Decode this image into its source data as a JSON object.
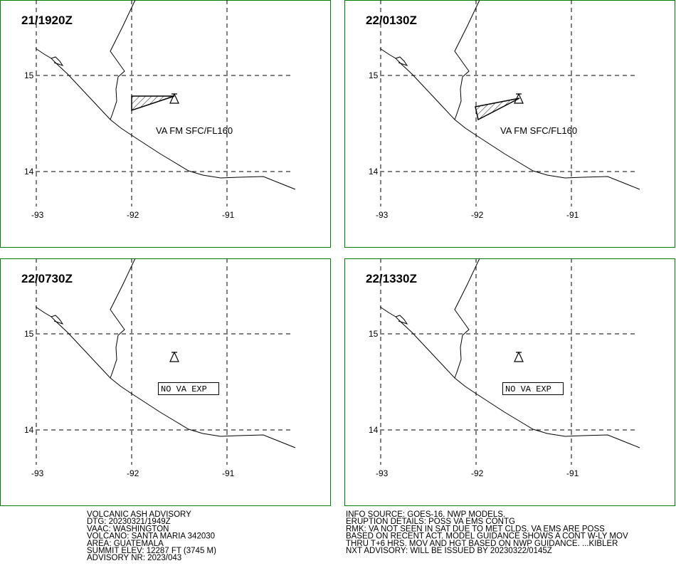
{
  "panels": [
    {
      "time": "21/1920Z",
      "annotation": "VA FM SFC/FL160"
    },
    {
      "time": "22/0130Z",
      "annotation": "VA FM SFC/FL160"
    },
    {
      "time": "22/0730Z",
      "annotation": "NO VA EXP"
    },
    {
      "time": "22/1330Z",
      "annotation": "NO VA EXP"
    }
  ],
  "grid": {
    "lat_labels": [
      "15",
      "14"
    ],
    "lon_labels": [
      "-93",
      "-92",
      "-91"
    ]
  },
  "advisory": {
    "left": [
      "VOLCANIC ASH ADVISORY",
      "DTG: 20230321/1949Z",
      "VAAC: WASHINGTON",
      "VOLCANO: SANTA MARIA 342030",
      "AREA: GUATEMALA",
      "SUMMIT ELEV: 12287 FT (3745 M)",
      "ADVISORY NR: 2023/043"
    ],
    "right": [
      "INFO SOURCE: GOES-16. NWP MODELS.",
      "ERUPTION DETAILS: POSS VA EMS CONTG",
      "RMK: VA NOT SEEN IN SAT DUE TO MET CLDS. VA EMS ARE POSS",
      "BASED ON RECENT ACT. MODEL GUIDANCE SHOWS A CONT W-LY MOV",
      "THRU T+6 HRS. MOV AND HGT BASED ON NWP GUIDANCE. ...KIBLER",
      "NXT ADVISORY: WILL BE ISSUED BY 20230322/0145Z"
    ]
  }
}
